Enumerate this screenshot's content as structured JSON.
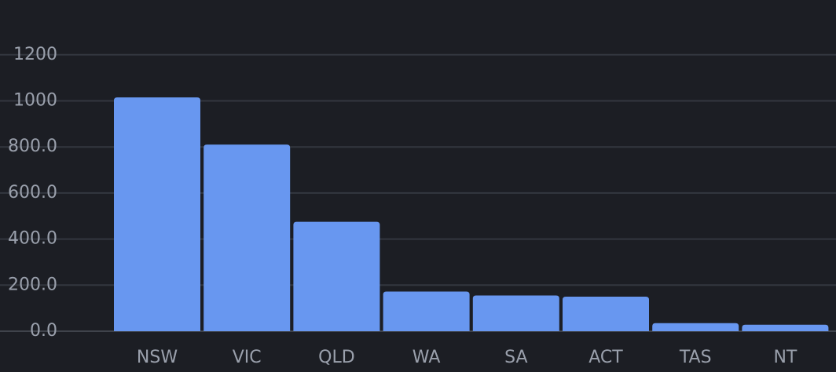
{
  "chart_data": {
    "type": "bar",
    "categories": [
      "NSW",
      "VIC",
      "QLD",
      "WA",
      "SA",
      "ACT",
      "TAS",
      "NT"
    ],
    "values": [
      1015,
      810,
      475,
      172,
      155,
      150,
      35,
      28
    ],
    "title": "",
    "xlabel": "",
    "ylabel": "",
    "ylim": [
      0,
      1200
    ],
    "yticks": [
      0,
      200,
      400,
      600,
      800,
      1000,
      1200
    ],
    "ytick_labels": [
      "0.0",
      "200.0",
      "400.0",
      "600.0",
      "800.0",
      "1000",
      "1200"
    ],
    "grid": "horizontal",
    "legend": "none",
    "colors": {
      "background": "#1c1e24",
      "bar": "#6897f0",
      "grid": "#33373f",
      "text": "#9aa0ac"
    }
  }
}
